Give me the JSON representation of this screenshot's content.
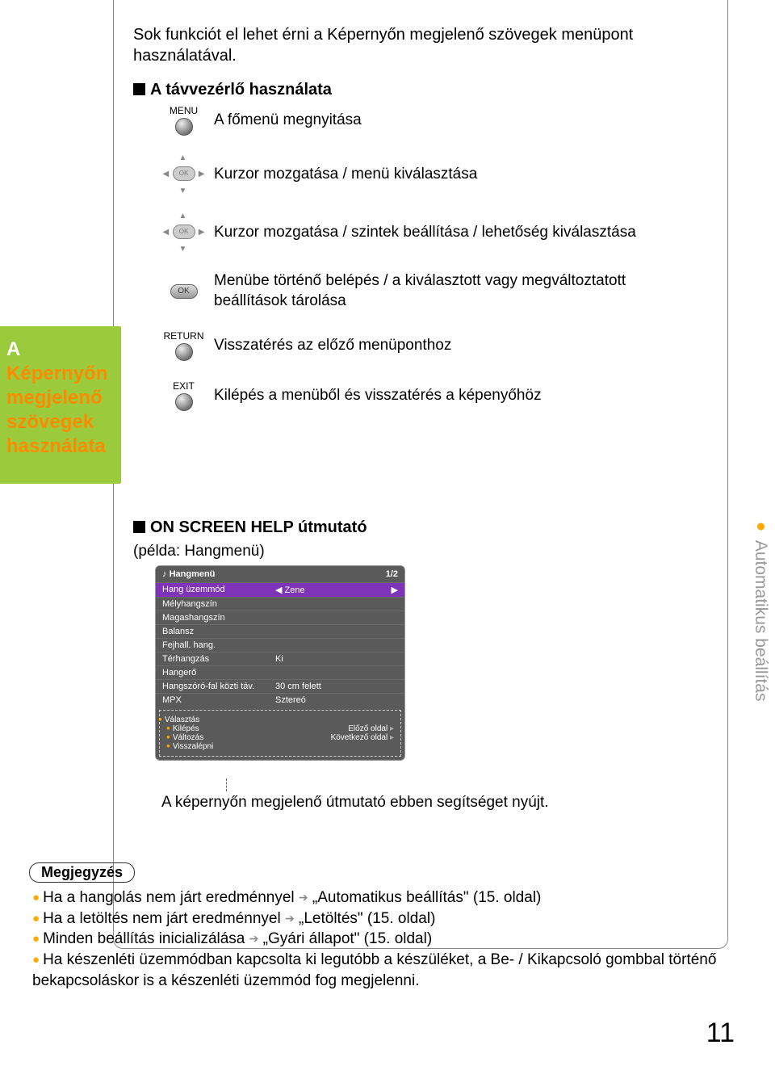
{
  "intro": "Sok funkciót el lehet érni a Képernyőn megjelenő szövegek menüpont használatával.",
  "section1": "A távvezérlő használata",
  "side": {
    "line1": "A",
    "line2": "Képernyőn megjelenő szövegek használata"
  },
  "remote": [
    {
      "label": "MENU",
      "desc": "A főmenü megnyitása",
      "icon": "circle"
    },
    {
      "label": "",
      "desc": "Kurzor mozgatása / menü kiválasztása",
      "icon": "dpad"
    },
    {
      "label": "",
      "desc": "Kurzor mozgatása / szintek beállítása / lehetőség kiválasztása",
      "icon": "dpad"
    },
    {
      "label": "",
      "desc": "Menübe történő belépés / a kiválasztott vagy megváltoztatott beállítások tárolása",
      "icon": "ok"
    },
    {
      "label": "RETURN",
      "desc": "Visszatérés az előző menüponthoz",
      "icon": "circle"
    },
    {
      "label": "EXIT",
      "desc": "Kilépés a menüből és visszatérés a képenyőhöz",
      "icon": "circle"
    }
  ],
  "section2": "ON SCREEN HELP útmutató",
  "example": "(példa: Hangmenü)",
  "osd": {
    "title": "Hangmenü",
    "page": "1/2",
    "rows": [
      {
        "label": "Hang üzemmód",
        "value": "Zene",
        "selected": true
      },
      {
        "label": "Mélyhangszín",
        "value": ""
      },
      {
        "label": "Magashangszín",
        "value": ""
      },
      {
        "label": "Balansz",
        "value": ""
      },
      {
        "label": "Fejhall. hang.",
        "value": ""
      },
      {
        "label": "Térhangzás",
        "value": "Ki"
      },
      {
        "label": "Hangerő",
        "value": ""
      },
      {
        "label": "Hangszóró-fal közti táv.",
        "value": "30 cm felett"
      },
      {
        "label": "MPX",
        "value": "Sztereó"
      }
    ],
    "hints": {
      "left_title": "Választás",
      "left": [
        "Kilépés",
        "Változás",
        "Visszalépni"
      ],
      "right": [
        "Előző oldal",
        "Következő oldal"
      ]
    }
  },
  "caption": "A képernyőn megjelenő útmutató ebben segítséget nyújt.",
  "right_label": "Automatikus beállítás",
  "notes": {
    "title": "Megjegyzés",
    "items": [
      {
        "pre": "Ha a hangolás nem járt eredménnyel",
        "post": "„Automatikus beállítás\" (15. oldal)"
      },
      {
        "pre": "Ha a letöltés nem járt eredménnyel",
        "post": "„Letöltés\" (15. oldal)"
      },
      {
        "pre": "Minden beállítás inicializálása",
        "post": "„Gyári állapot\" (15. oldal)"
      },
      {
        "pre": "Ha készenléti üzemmódban kapcsolta ki legutóbb a készüléket, a Be- / Kikapcsoló gombbal történő bekapcsoláskor is a készenléti üzemmód fog megjelenni.",
        "post": ""
      }
    ]
  },
  "page_number": "11",
  "ok_label": "OK"
}
